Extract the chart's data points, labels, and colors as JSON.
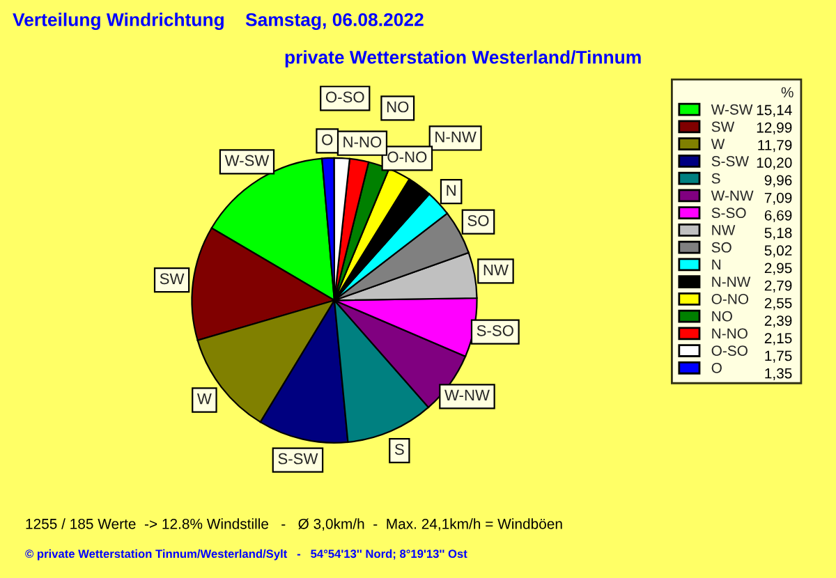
{
  "chart_data": {
    "type": "pie",
    "title": "Verteilung Windrichtung    Samstag, 06.08.2022",
    "subtitle": "private Wetterstation Westerland/Tinnum",
    "legend_title": "%",
    "legend": "right",
    "categories": [
      "W-SW",
      "SW",
      "W",
      "S-SW",
      "S",
      "W-NW",
      "S-SO",
      "NW",
      "SO",
      "N",
      "N-NW",
      "O-NO",
      "NO",
      "N-NO",
      "O-SO",
      "O"
    ],
    "values": [
      15.14,
      12.99,
      11.79,
      10.2,
      9.96,
      7.09,
      6.69,
      5.18,
      5.02,
      2.95,
      2.79,
      2.55,
      2.39,
      2.15,
      1.75,
      1.35
    ],
    "value_labels": [
      "15,14",
      "12,99",
      "11,79",
      "10,20",
      "9,96",
      "7,09",
      "6,69",
      "5,18",
      "5,02",
      "2,95",
      "2,79",
      "2,55",
      "2,39",
      "2,15",
      "1,75",
      "1,35"
    ],
    "colors": [
      "#00ff00",
      "#800000",
      "#808000",
      "#000080",
      "#008080",
      "#800080",
      "#ff00ff",
      "#c0c0c0",
      "#808080",
      "#00ffff",
      "#000000",
      "#ffff00",
      "#008000",
      "#ff0000",
      "#ffffff",
      "#0000ff"
    ],
    "annotations": [
      "1255 / 185 Werte  -> 12.8% Windstille   -   Ø 3,0km/h  -  Max. 24,1km/h = Windböen",
      "© private Wetterstation Tinnum/Westerland/Sylt   -   54°54'13'' Nord; 8°19'13'' Ost"
    ]
  }
}
